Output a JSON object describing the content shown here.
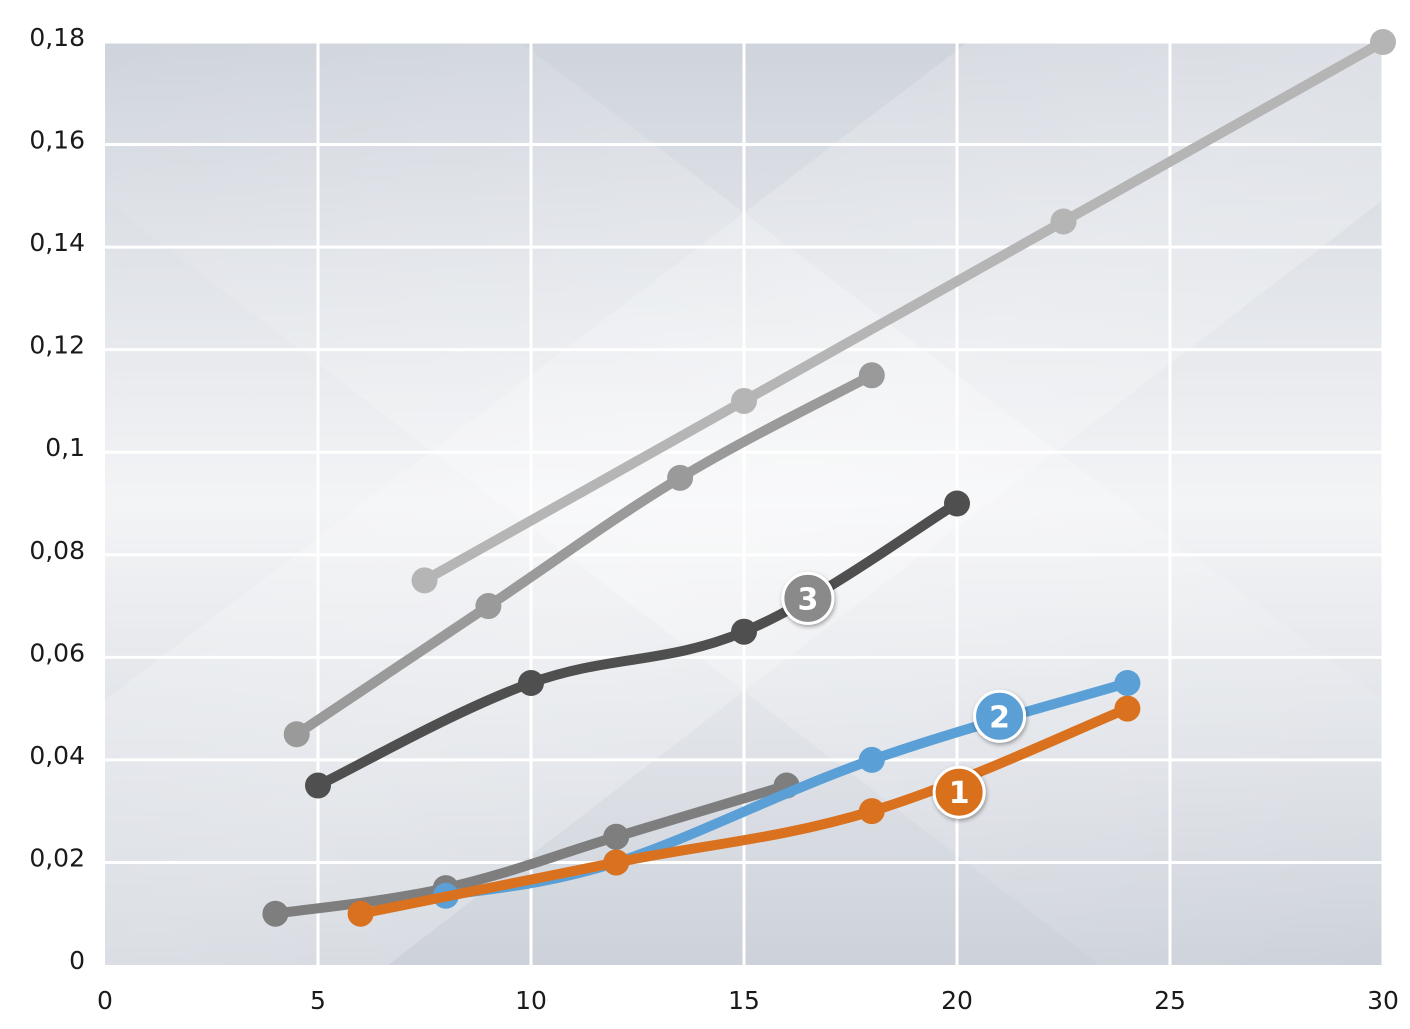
{
  "chart_data": {
    "type": "line",
    "title": "",
    "xlabel": "",
    "ylabel": "",
    "xlim": [
      0,
      30
    ],
    "ylim": [
      0,
      0.18
    ],
    "x_ticks": [
      0,
      5,
      10,
      15,
      20,
      25,
      30
    ],
    "x_tick_labels": [
      "0",
      "5",
      "10",
      "15",
      "20",
      "25",
      "30"
    ],
    "y_ticks": [
      0,
      0.02,
      0.04,
      0.06,
      0.08,
      0.1,
      0.12,
      0.14,
      0.16,
      0.18
    ],
    "y_tick_labels": [
      "0",
      "0,02",
      "0,04",
      "0,06",
      "0,08",
      "0,1",
      "0,12",
      "0,14",
      "0,16",
      "0,18"
    ],
    "grid": true,
    "legend": "none",
    "series": [
      {
        "color": "#d9711f",
        "badge": "1",
        "badge_at": [
          20.05,
          0.0337
        ],
        "points": [
          [
            6,
            0.01
          ],
          [
            12,
            0.02
          ],
          [
            18,
            0.03
          ],
          [
            24,
            0.05
          ]
        ]
      },
      {
        "color": "#5a9fd6",
        "badge": "2",
        "badge_at": [
          21,
          0.0485
        ],
        "points": [
          [
            8,
            0.0135
          ],
          [
            12,
            0.02
          ],
          [
            18,
            0.04
          ],
          [
            24,
            0.055
          ]
        ]
      },
      {
        "color": "#4f4f4f",
        "badge": "3",
        "badge_badge_color": "#8a8a8a",
        "badge_at": [
          16.5,
          0.0715
        ],
        "points": [
          [
            5,
            0.035
          ],
          [
            10,
            0.055
          ],
          [
            15,
            0.065
          ],
          [
            20,
            0.09
          ]
        ]
      },
      {
        "color": "#7e7e7e",
        "points": [
          [
            4,
            0.01
          ],
          [
            8,
            0.015
          ],
          [
            12,
            0.025
          ],
          [
            16,
            0.035
          ]
        ]
      },
      {
        "color": "#9a9a9a",
        "points": [
          [
            4.5,
            0.045
          ],
          [
            9,
            0.07
          ],
          [
            13.5,
            0.095
          ],
          [
            18,
            0.115
          ]
        ]
      },
      {
        "color": "#b5b5b5",
        "points": [
          [
            7.5,
            0.075
          ],
          [
            15,
            0.11
          ],
          [
            22.5,
            0.145
          ],
          [
            30,
            0.18
          ]
        ]
      }
    ]
  }
}
